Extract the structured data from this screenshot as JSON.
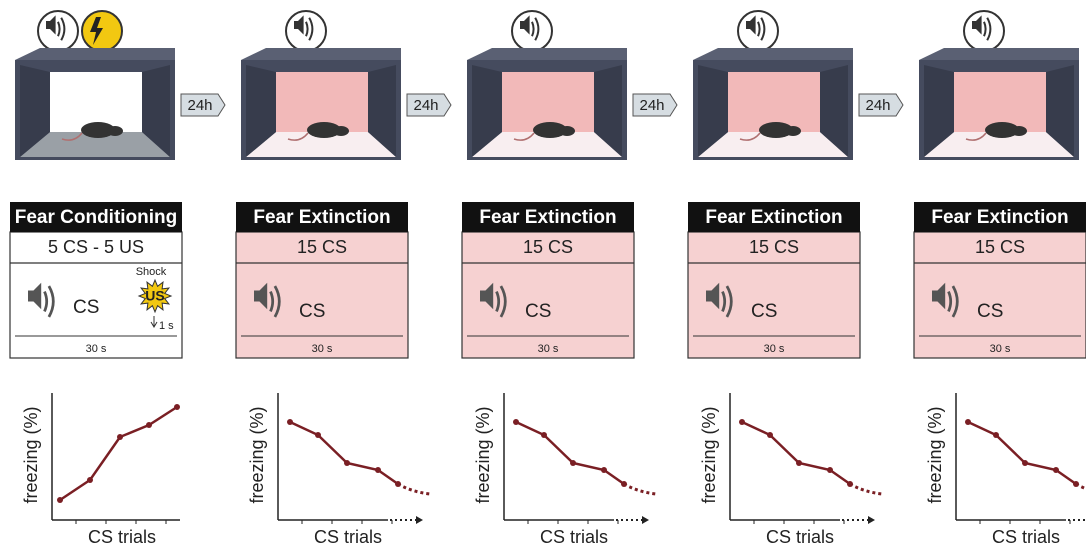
{
  "panels": [
    {
      "kind": "conditioning",
      "title": "Fear Conditioning",
      "protocol": "5 CS - 5 US",
      "cs_label": "CS",
      "shock_label": "Shock",
      "us_label": "US",
      "delay": "1 s",
      "duration": "30 s",
      "y_label": "freezing (%)",
      "x_label": "CS trials"
    },
    {
      "kind": "extinction",
      "title": "Fear Extinction",
      "protocol": "15 CS",
      "cs_label": "CS",
      "duration": "30 s",
      "y_label": "freezing (%)",
      "x_label": "CS trials"
    },
    {
      "kind": "extinction",
      "title": "Fear Extinction",
      "protocol": "15 CS",
      "cs_label": "CS",
      "duration": "30 s",
      "y_label": "freezing (%)",
      "x_label": "CS trials"
    },
    {
      "kind": "extinction",
      "title": "Fear Extinction",
      "protocol": "15 CS",
      "cs_label": "CS",
      "duration": "30 s",
      "y_label": "freezing (%)",
      "x_label": "CS trials"
    },
    {
      "kind": "extinction",
      "title": "Fear Extinction",
      "protocol": "15 CS",
      "cs_label": "CS",
      "duration": "30 s",
      "y_label": "freezing (%)",
      "x_label": "CS trials"
    }
  ],
  "intervals": [
    "24h",
    "24h",
    "24h",
    "24h"
  ]
}
